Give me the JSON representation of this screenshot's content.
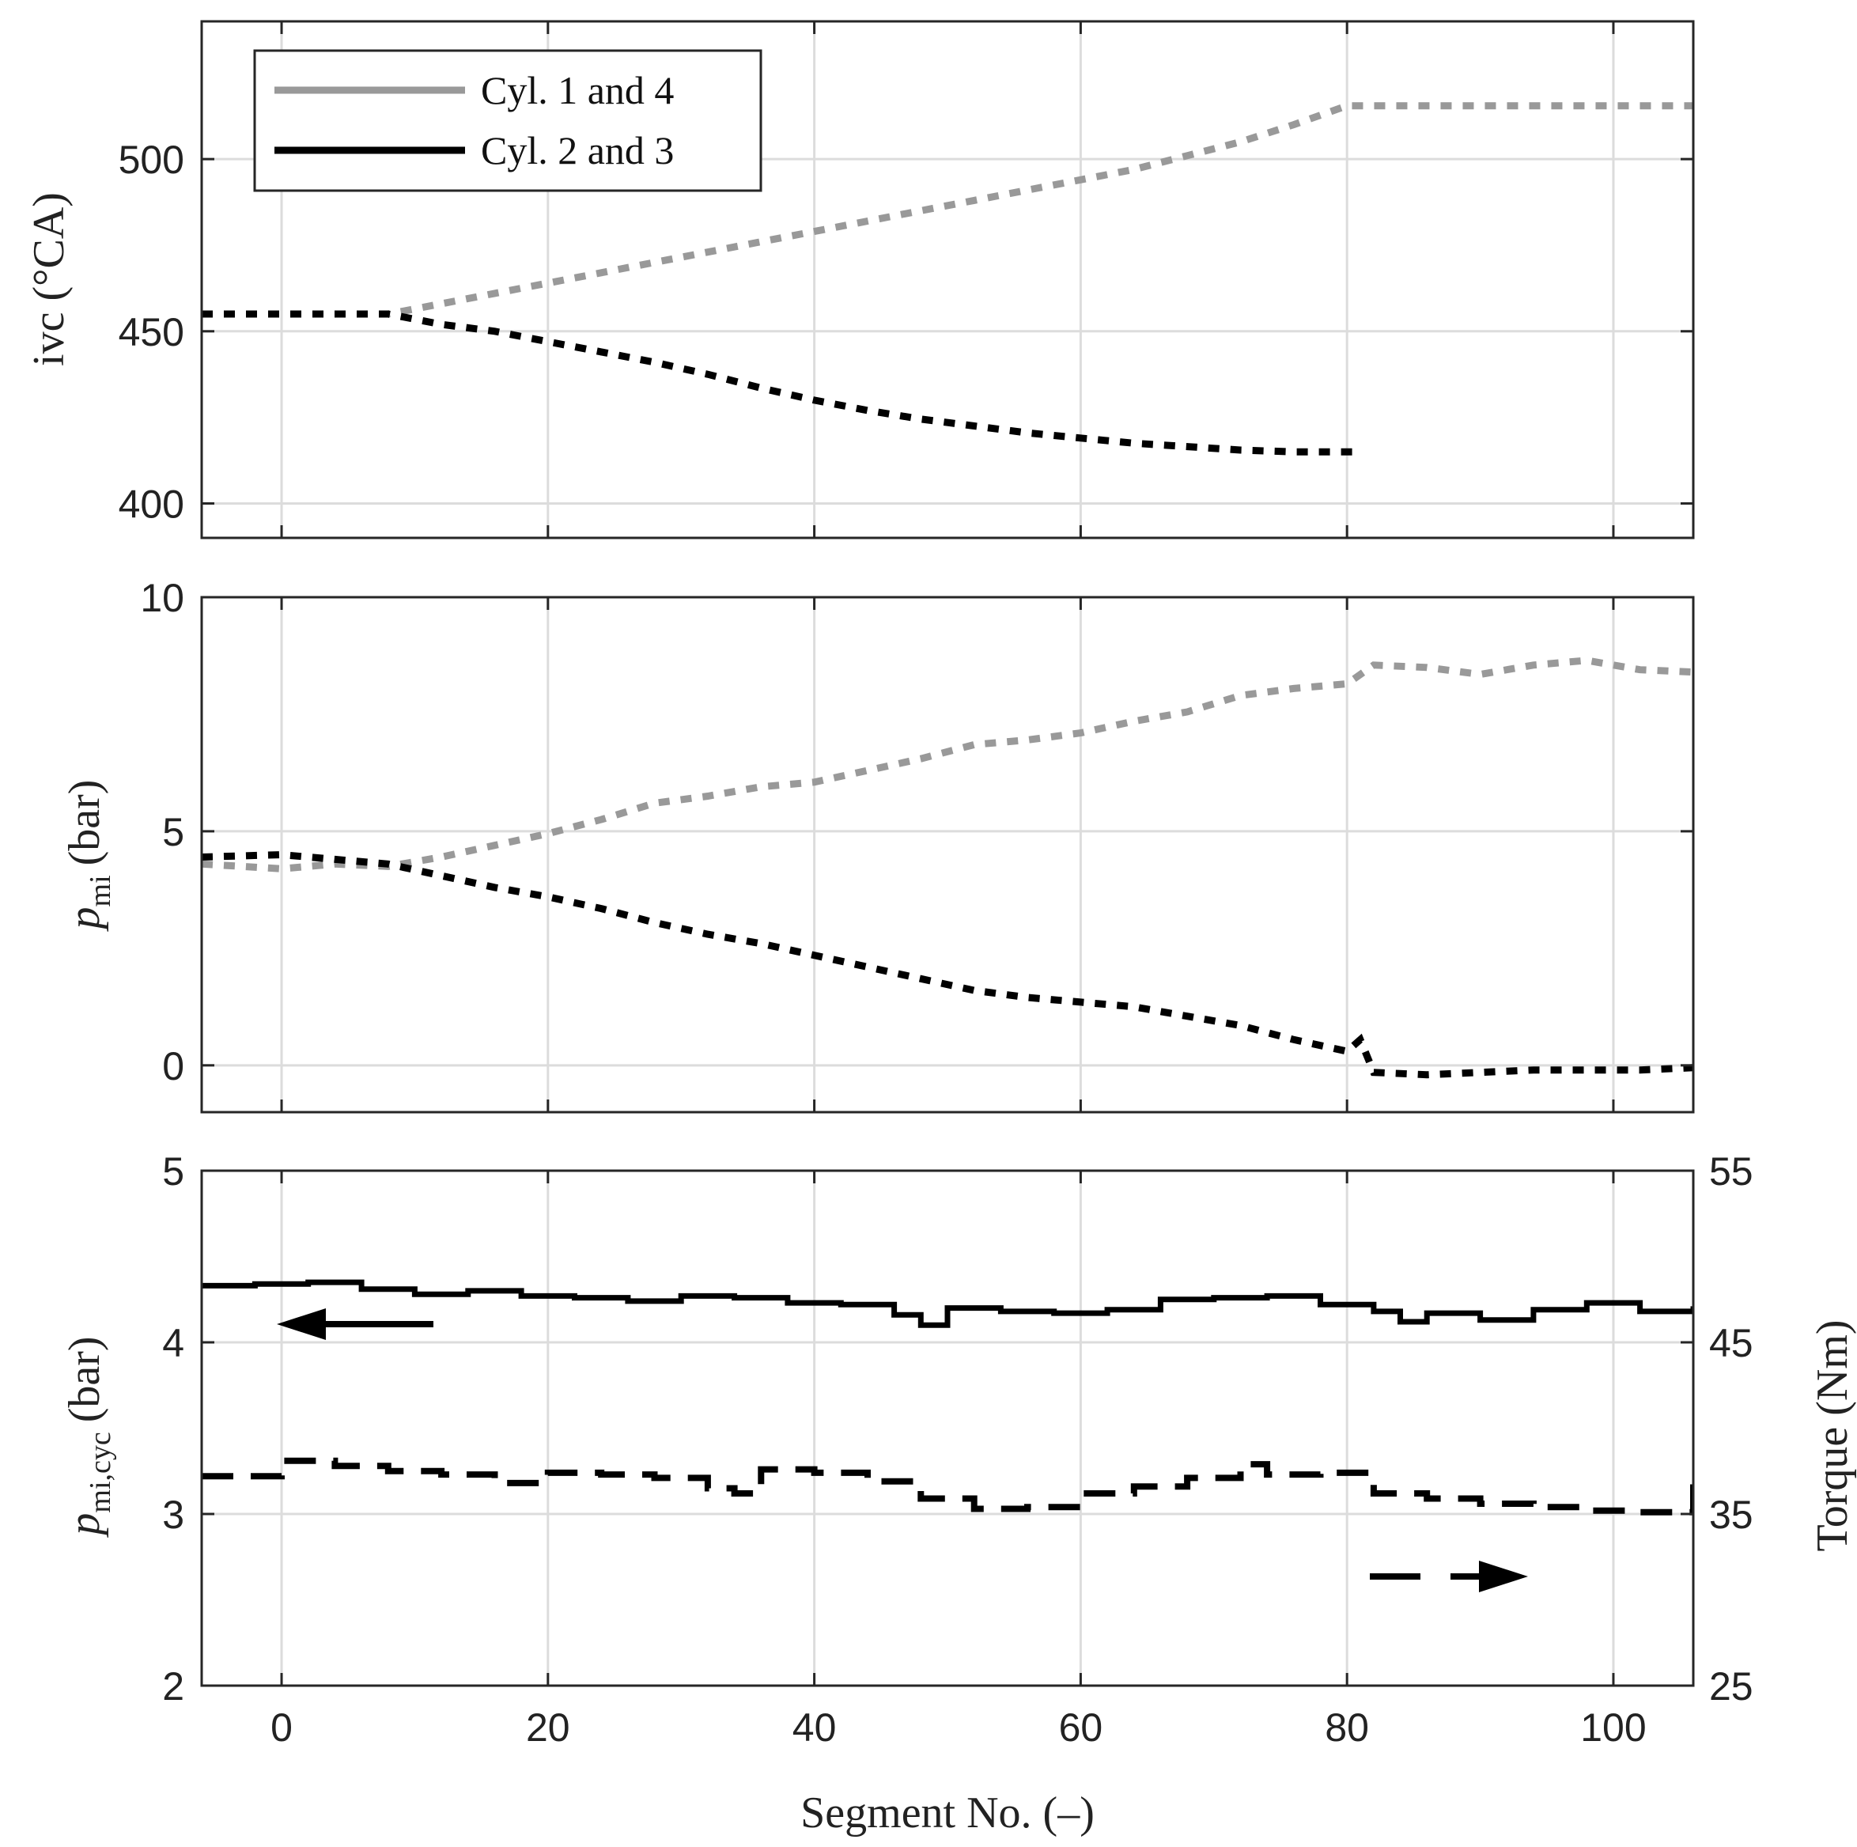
{
  "chart_data": [
    {
      "type": "line",
      "panel": "top",
      "title": "",
      "xlabel": "",
      "ylabel": "ivc (°CA)",
      "xlim": [
        -6,
        106
      ],
      "ylim": [
        390,
        540
      ],
      "xticks": [
        0,
        20,
        40,
        60,
        80,
        100
      ],
      "yticks": [
        400,
        450,
        500
      ],
      "ytick_labels": [
        "400",
        "450",
        "500"
      ],
      "grid": true,
      "legend_position": "top-left",
      "series": [
        {
          "name": "Cyl. 1 and 4",
          "color": "#999999",
          "style": "dotted",
          "x": [
            -6,
            8,
            12,
            16,
            20,
            24,
            28,
            32,
            36,
            40,
            44,
            48,
            52,
            56,
            60,
            64,
            68,
            72,
            76,
            80,
            84,
            88,
            92,
            96,
            100,
            104,
            106
          ],
          "values": [
            455,
            455,
            458,
            461,
            464,
            467,
            470,
            473,
            476,
            479,
            482,
            485,
            488,
            491,
            494,
            497,
            501,
            505,
            510,
            515.5,
            515.5,
            515.5,
            515.5,
            515.5,
            515.5,
            515.5,
            515.5
          ]
        },
        {
          "name": "Cyl. 2 and 3",
          "color": "#000000",
          "style": "dotted",
          "x": [
            -6,
            8,
            12,
            16,
            20,
            24,
            28,
            32,
            36,
            40,
            44,
            48,
            52,
            56,
            60,
            64,
            68,
            72,
            76,
            80,
            81
          ],
          "values": [
            455,
            455,
            452,
            450,
            447,
            444,
            441,
            437.5,
            433.5,
            430,
            427,
            424.5,
            422.5,
            420.5,
            419,
            417.5,
            416.5,
            415.5,
            415,
            415,
            415
          ]
        }
      ]
    },
    {
      "type": "line",
      "panel": "middle",
      "title": "",
      "xlabel": "",
      "ylabel_symbol": "p",
      "ylabel_sub": "mi",
      "ylabel_unit": "(bar)",
      "xlim": [
        -6,
        106
      ],
      "ylim": [
        -1,
        10
      ],
      "xticks": [
        0,
        20,
        40,
        60,
        80,
        100
      ],
      "yticks": [
        0,
        5,
        10
      ],
      "ytick_labels": [
        "0",
        "5",
        "10"
      ],
      "grid": true,
      "series": [
        {
          "name": "Cyl. 1 and 4",
          "color": "#999999",
          "style": "dotted",
          "x": [
            -6,
            0,
            4,
            8,
            12,
            16,
            20,
            24,
            28,
            32,
            36,
            40,
            44,
            48,
            52,
            56,
            60,
            64,
            68,
            72,
            76,
            80,
            82,
            86,
            90,
            94,
            98,
            102,
            106
          ],
          "values": [
            4.3,
            4.2,
            4.3,
            4.25,
            4.45,
            4.7,
            4.95,
            5.25,
            5.6,
            5.75,
            5.95,
            6.05,
            6.3,
            6.55,
            6.85,
            6.95,
            7.1,
            7.35,
            7.55,
            7.9,
            8.05,
            8.15,
            8.55,
            8.5,
            8.35,
            8.55,
            8.65,
            8.45,
            8.4
          ]
        },
        {
          "name": "Cyl. 2 and 3",
          "color": "#000000",
          "style": "dotted",
          "x": [
            -6,
            0,
            4,
            8,
            12,
            16,
            20,
            24,
            28,
            32,
            36,
            40,
            44,
            48,
            52,
            56,
            60,
            64,
            68,
            72,
            76,
            80,
            81,
            82,
            86,
            90,
            94,
            98,
            102,
            106
          ],
          "values": [
            4.45,
            4.5,
            4.4,
            4.3,
            4.05,
            3.8,
            3.6,
            3.35,
            3.05,
            2.8,
            2.6,
            2.35,
            2.1,
            1.85,
            1.6,
            1.45,
            1.35,
            1.25,
            1.05,
            0.85,
            0.55,
            0.3,
            0.55,
            -0.15,
            -0.2,
            -0.15,
            -0.1,
            -0.1,
            -0.1,
            -0.05
          ]
        }
      ]
    },
    {
      "type": "line",
      "panel": "bottom",
      "title": "",
      "xlabel": "Segment No. (–)",
      "ylabel_symbol": "p",
      "ylabel_sub": "mi,cyc",
      "ylabel_unit": "(bar)",
      "y2label": "Torque (Nm)",
      "xlim": [
        -6,
        106
      ],
      "ylim": [
        2,
        5
      ],
      "y2lim": [
        25,
        55
      ],
      "xticks": [
        0,
        20,
        40,
        60,
        80,
        100
      ],
      "xtick_labels": [
        "0",
        "20",
        "40",
        "60",
        "80",
        "100"
      ],
      "yticks": [
        2,
        3,
        4,
        5
      ],
      "ytick_labels": [
        "2",
        "3",
        "4",
        "5"
      ],
      "y2ticks": [
        25,
        35,
        45,
        55
      ],
      "y2tick_labels": [
        "25",
        "35",
        "45",
        "55"
      ],
      "grid": true,
      "series": [
        {
          "name": "p_mi,cyc",
          "axis": "left",
          "color": "#000000",
          "style": "solid-step",
          "x": [
            -6,
            -2,
            2,
            6,
            10,
            14,
            18,
            22,
            26,
            30,
            34,
            38,
            42,
            46,
            48,
            50,
            54,
            58,
            62,
            66,
            70,
            74,
            78,
            82,
            84,
            86,
            90,
            94,
            98,
            102,
            106
          ],
          "values": [
            4.33,
            4.34,
            4.35,
            4.31,
            4.28,
            4.3,
            4.27,
            4.26,
            4.24,
            4.27,
            4.26,
            4.23,
            4.22,
            4.16,
            4.1,
            4.2,
            4.18,
            4.17,
            4.19,
            4.25,
            4.26,
            4.27,
            4.22,
            4.18,
            4.12,
            4.17,
            4.13,
            4.19,
            4.23,
            4.18,
            4.21
          ]
        },
        {
          "name": "Torque",
          "axis": "right",
          "color": "#000000",
          "style": "dashed-step",
          "x": [
            -6,
            0,
            4,
            8,
            12,
            16,
            20,
            24,
            28,
            32,
            34,
            36,
            40,
            44,
            48,
            52,
            56,
            60,
            64,
            68,
            72,
            74,
            78,
            82,
            86,
            90,
            94,
            98,
            102,
            106
          ],
          "values": [
            37.2,
            38.1,
            37.8,
            37.5,
            37.3,
            36.8,
            37.4,
            37.3,
            37.1,
            36.5,
            36.2,
            37.6,
            37.4,
            36.9,
            35.9,
            35.3,
            35.4,
            36.2,
            36.6,
            37.1,
            37.9,
            37.3,
            37.4,
            36.2,
            35.9,
            35.6,
            35.4,
            35.2,
            35.1,
            37.3
          ]
        }
      ],
      "annotations": [
        {
          "type": "arrow",
          "points_to": "left axis",
          "style": "solid"
        },
        {
          "type": "arrow",
          "points_to": "right axis",
          "style": "dashed"
        }
      ]
    }
  ],
  "legend": {
    "items": [
      {
        "label": "Cyl. 1 and 4",
        "color": "#999999"
      },
      {
        "label": "Cyl. 2 and 3",
        "color": "#000000"
      }
    ]
  }
}
